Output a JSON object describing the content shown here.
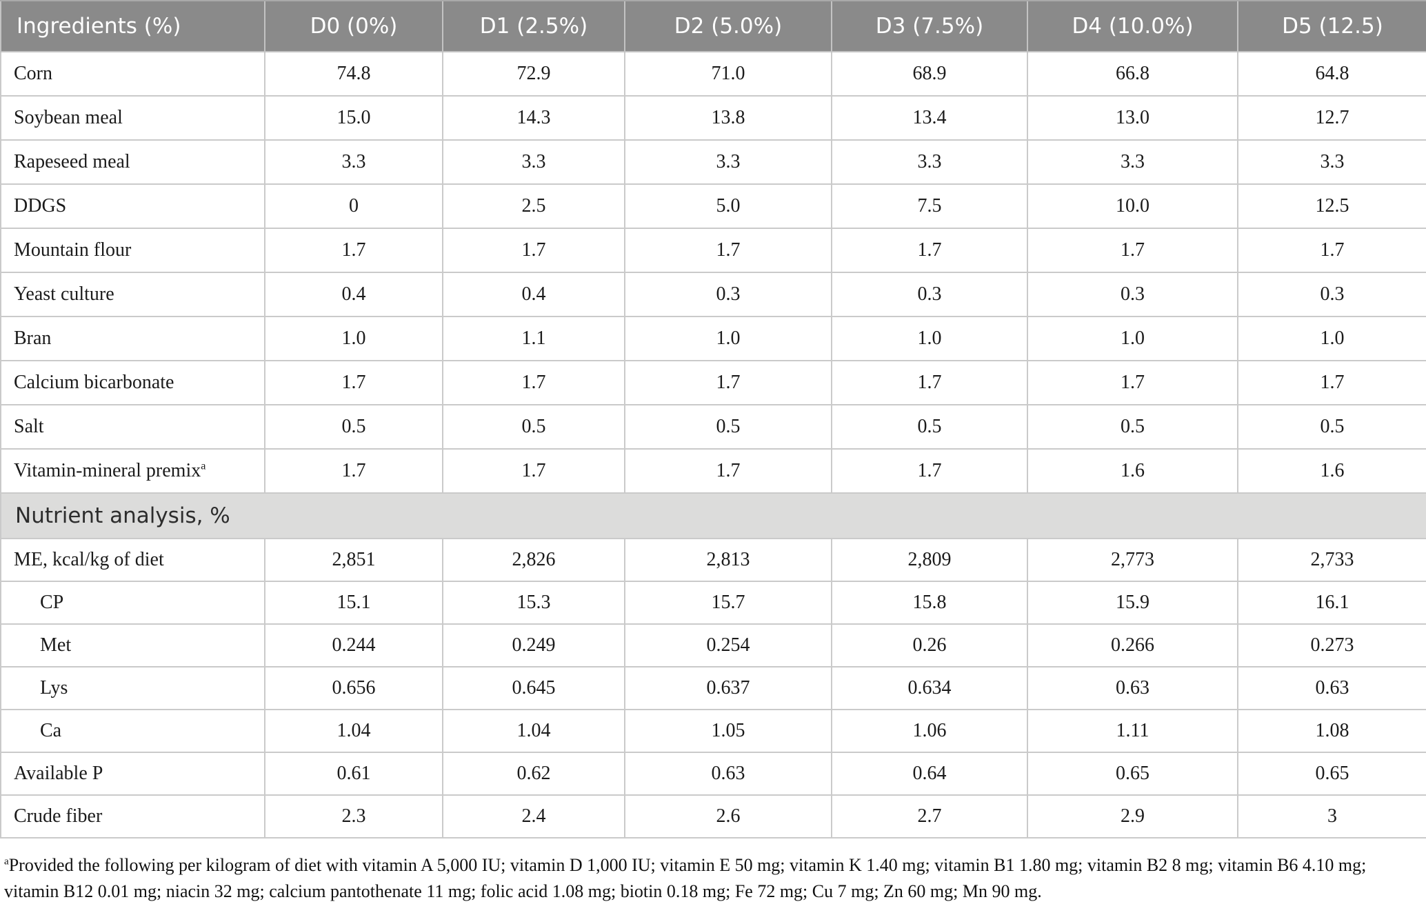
{
  "table": {
    "columns": [
      "Ingredients (%)",
      "D0 (0%)",
      "D1 (2.5%)",
      "D2 (5.0%)",
      "D3 (7.5%)",
      "D4 (10.0%)",
      "D5 (12.5)"
    ],
    "ingredient_rows": [
      {
        "label": "Corn",
        "sup": "",
        "indent": false,
        "values": [
          "74.8",
          "72.9",
          "71.0",
          "68.9",
          "66.8",
          "64.8"
        ]
      },
      {
        "label": "Soybean meal",
        "sup": "",
        "indent": false,
        "values": [
          "15.0",
          "14.3",
          "13.8",
          "13.4",
          "13.0",
          "12.7"
        ]
      },
      {
        "label": "Rapeseed meal",
        "sup": "",
        "indent": false,
        "values": [
          "3.3",
          "3.3",
          "3.3",
          "3.3",
          "3.3",
          "3.3"
        ]
      },
      {
        "label": "DDGS",
        "sup": "",
        "indent": false,
        "values": [
          "0",
          "2.5",
          "5.0",
          "7.5",
          "10.0",
          "12.5"
        ]
      },
      {
        "label": "Mountain flour",
        "sup": "",
        "indent": false,
        "values": [
          "1.7",
          "1.7",
          "1.7",
          "1.7",
          "1.7",
          "1.7"
        ]
      },
      {
        "label": "Yeast culture",
        "sup": "",
        "indent": false,
        "values": [
          "0.4",
          "0.4",
          "0.3",
          "0.3",
          "0.3",
          "0.3"
        ]
      },
      {
        "label": "Bran",
        "sup": "",
        "indent": false,
        "values": [
          "1.0",
          "1.1",
          "1.0",
          "1.0",
          "1.0",
          "1.0"
        ]
      },
      {
        "label": "Calcium bicarbonate",
        "sup": "",
        "indent": false,
        "values": [
          "1.7",
          "1.7",
          "1.7",
          "1.7",
          "1.7",
          "1.7"
        ]
      },
      {
        "label": "Salt",
        "sup": "",
        "indent": false,
        "values": [
          "0.5",
          "0.5",
          "0.5",
          "0.5",
          "0.5",
          "0.5"
        ]
      },
      {
        "label": "Vitamin-mineral premix",
        "sup": "a",
        "indent": false,
        "values": [
          "1.7",
          "1.7",
          "1.7",
          "1.7",
          "1.6",
          "1.6"
        ]
      }
    ],
    "section_header": "Nutrient analysis, %",
    "nutrient_rows": [
      {
        "label": "ME, kcal/kg of diet",
        "sup": "",
        "indent": false,
        "values": [
          "2,851",
          "2,826",
          "2,813",
          "2,809",
          "2,773",
          "2,733"
        ]
      },
      {
        "label": "CP",
        "sup": "",
        "indent": true,
        "values": [
          "15.1",
          "15.3",
          "15.7",
          "15.8",
          "15.9",
          "16.1"
        ]
      },
      {
        "label": "Met",
        "sup": "",
        "indent": true,
        "values": [
          "0.244",
          "0.249",
          "0.254",
          "0.26",
          "0.266",
          "0.273"
        ]
      },
      {
        "label": "Lys",
        "sup": "",
        "indent": true,
        "values": [
          "0.656",
          "0.645",
          "0.637",
          "0.634",
          "0.63",
          "0.63"
        ]
      },
      {
        "label": "Ca",
        "sup": "",
        "indent": true,
        "values": [
          "1.04",
          "1.04",
          "1.05",
          "1.06",
          "1.11",
          "1.08"
        ]
      },
      {
        "label": "Available P",
        "sup": "",
        "indent": false,
        "values": [
          "0.61",
          "0.62",
          "0.63",
          "0.64",
          "0.65",
          "0.65"
        ]
      },
      {
        "label": "Crude fiber",
        "sup": "",
        "indent": false,
        "values": [
          "2.3",
          "2.4",
          "2.6",
          "2.7",
          "2.9",
          "3"
        ]
      }
    ]
  },
  "footnote": {
    "marker": "a",
    "text": "Provided the following per kilogram of diet with vitamin A 5,000 IU; vitamin D 1,000 IU; vitamin E 50 mg; vitamin K 1.40 mg; vitamin B1 1.80 mg; vitamin B2 8 mg; vitamin B6 4.10 mg; vitamin B12 0.01 mg; niacin 32 mg; calcium pantothenate 11 mg; folic acid 1.08 mg; biotin 0.18 mg; Fe 72 mg; Cu 7 mg; Zn 60 mg; Mn 90 mg."
  },
  "colors": {
    "header_bg": "#8a8a8a",
    "header_text": "#ffffff",
    "section_bg": "#dcdcdb",
    "border": "#cacaca",
    "body_text": "#1b1b1b"
  }
}
